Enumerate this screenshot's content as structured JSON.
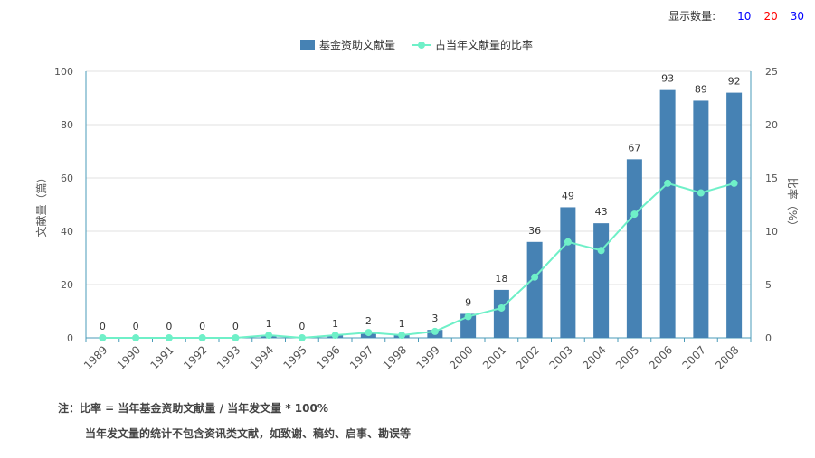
{
  "controls": {
    "count_label": "显示数量:",
    "options": [
      {
        "label": "10",
        "color": "#0000ff"
      },
      {
        "label": "20",
        "color": "#ff0000"
      },
      {
        "label": "30",
        "color": "#0000ff"
      }
    ]
  },
  "chart_data": {
    "type": "bar",
    "categories": [
      "1989",
      "1990",
      "1991",
      "1992",
      "1993",
      "1994",
      "1995",
      "1996",
      "1997",
      "1998",
      "1999",
      "2000",
      "2001",
      "2002",
      "2003",
      "2004",
      "2005",
      "2006",
      "2007",
      "2008"
    ],
    "series": [
      {
        "name": "基金资助文献量",
        "type": "bar",
        "axis": "left",
        "color": "#4682b4",
        "values": [
          0,
          0,
          0,
          0,
          0,
          1,
          0,
          1,
          2,
          1,
          3,
          9,
          18,
          36,
          49,
          43,
          67,
          93,
          89,
          92
        ]
      },
      {
        "name": "占当年文献量的比率",
        "type": "line",
        "axis": "right",
        "color": "#6ff0c8",
        "values": [
          0,
          0,
          0,
          0,
          0,
          0.25,
          0,
          0.25,
          0.5,
          0.25,
          0.6,
          2.0,
          2.8,
          5.7,
          9.0,
          8.2,
          11.6,
          14.5,
          13.6,
          14.5
        ]
      }
    ],
    "ylabel_left": "文献量（篇）",
    "ylabel_right": "比率（%）",
    "ylim_left": [
      0,
      100
    ],
    "ylim_right": [
      0,
      25
    ],
    "yticks_left": [
      0,
      20,
      40,
      60,
      80,
      100
    ],
    "yticks_right": [
      0,
      5,
      10,
      15,
      20,
      25
    ],
    "grid": true,
    "legend": "top-center"
  },
  "notes": {
    "line1": "注：比率 = 当年基金资助文献量 / 当年发文量 * 100%",
    "line2": "当年发文量的统计不包含资讯类文献，如致谢、稿约、启事、勘误等"
  }
}
